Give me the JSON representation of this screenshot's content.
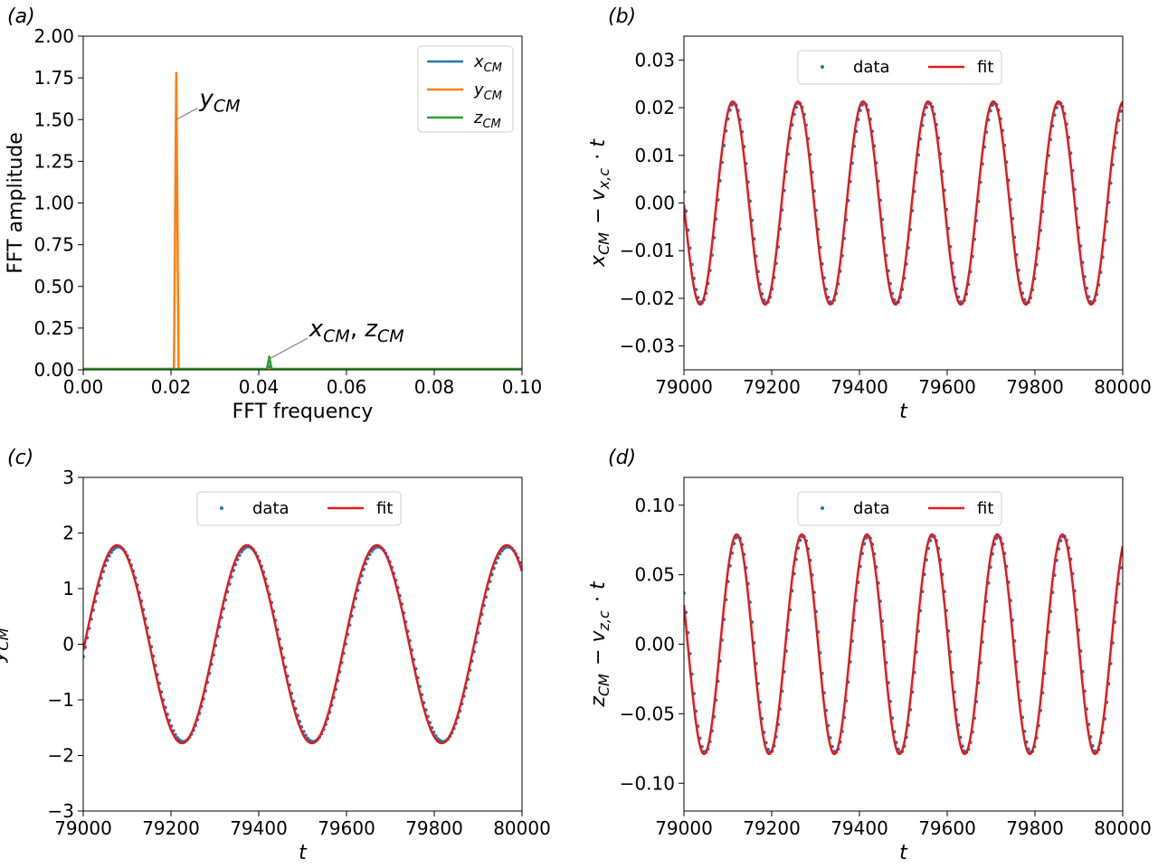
{
  "colors": {
    "x_cm": "#1f77b4",
    "y_cm": "#ff7f0e",
    "z_cm": "#2ca02c",
    "data": "#1f77b4",
    "fit": "#e41a1c"
  },
  "chart_data": [
    {
      "id": "a",
      "panel_label": "(a)",
      "type": "line",
      "xlabel": "FFT frequency",
      "ylabel": "FFT amplitude",
      "xlim": [
        0.0,
        0.1
      ],
      "ylim": [
        0.0,
        2.0
      ],
      "xticks": [
        0.0,
        0.02,
        0.04,
        0.06,
        0.08,
        0.1
      ],
      "xtick_labels": [
        "0.00",
        "0.02",
        "0.04",
        "0.06",
        "0.08",
        "0.10"
      ],
      "yticks": [
        0.0,
        0.25,
        0.5,
        0.75,
        1.0,
        1.25,
        1.5,
        1.75,
        2.0
      ],
      "ytick_labels": [
        "0.00",
        "0.25",
        "0.50",
        "0.75",
        "1.00",
        "1.25",
        "1.50",
        "1.75",
        "2.00"
      ],
      "legend_position": "top-right",
      "series": [
        {
          "name": "x_CM",
          "peak_frequency": 0.0424,
          "peak_amplitude": 0.021,
          "baseline": 0.005
        },
        {
          "name": "y_CM",
          "peak_frequency": 0.0212,
          "peak_amplitude": 1.78,
          "baseline": 0.005
        },
        {
          "name": "z_CM",
          "peak_frequency": 0.0424,
          "peak_amplitude": 0.079,
          "baseline": 0.005
        }
      ],
      "annotations": [
        {
          "base": "y",
          "sub": "CM",
          "suffix": "",
          "arrow_to": [
            0.0212,
            1.5
          ],
          "text_at": [
            0.0265,
            1.58
          ]
        },
        {
          "base": "x",
          "sub": "CM",
          "suffix": ", z",
          "suffix_sub": "CM",
          "arrow_to": [
            0.0424,
            0.065
          ],
          "text_at": [
            0.0515,
            0.2
          ]
        }
      ]
    },
    {
      "id": "b",
      "panel_label": "(b)",
      "type": "line",
      "xlabel": "t",
      "ylabel": "x_CM − v_x,c · t",
      "xlim": [
        79000,
        80000
      ],
      "ylim": [
        -0.035,
        0.035
      ],
      "xticks": [
        79000,
        79200,
        79400,
        79600,
        79800,
        80000
      ],
      "xtick_labels": [
        "79000",
        "79200",
        "79400",
        "79600",
        "79800",
        "80000"
      ],
      "yticks": [
        -0.03,
        -0.02,
        -0.01,
        0.0,
        0.01,
        0.02,
        0.03
      ],
      "ytick_labels": [
        "−0.03",
        "−0.02",
        "−0.01",
        "0.00",
        "0.01",
        "0.02",
        "0.03"
      ],
      "legend_position": "top-center",
      "legend": [
        "data",
        "fit"
      ],
      "fit": {
        "amplitude": 0.0213,
        "period": 148.5,
        "peak_t": 79111,
        "offset": 0
      },
      "data_samples": {
        "count": 220,
        "t_start": 79000,
        "t_end": 80000
      }
    },
    {
      "id": "c",
      "panel_label": "(c)",
      "type": "line",
      "xlabel": "t",
      "ylabel": "y_CM",
      "xlim": [
        79000,
        80000
      ],
      "ylim": [
        -3,
        3
      ],
      "xticks": [
        79000,
        79200,
        79400,
        79600,
        79800,
        80000
      ],
      "xtick_labels": [
        "79000",
        "79200",
        "79400",
        "79600",
        "79800",
        "80000"
      ],
      "yticks": [
        -3,
        -2,
        -1,
        0,
        1,
        2,
        3
      ],
      "ytick_labels": [
        "−3",
        "−2",
        "−1",
        "0",
        "1",
        "2",
        "3"
      ],
      "legend_position": "top-center",
      "legend": [
        "data",
        "fit"
      ],
      "fit": {
        "amplitude": 1.78,
        "period": 296,
        "peak_t": 79077,
        "offset": 0
      },
      "data_samples": {
        "count": 220,
        "t_start": 79000,
        "t_end": 80000
      }
    },
    {
      "id": "d",
      "panel_label": "(d)",
      "type": "line",
      "xlabel": "t",
      "ylabel": "z_CM − v_z,c · t",
      "xlim": [
        79000,
        80000
      ],
      "ylim": [
        -0.12,
        0.12
      ],
      "xticks": [
        79000,
        79200,
        79400,
        79600,
        79800,
        80000
      ],
      "xtick_labels": [
        "79000",
        "79200",
        "79400",
        "79600",
        "79800",
        "80000"
      ],
      "yticks": [
        -0.1,
        -0.05,
        0.0,
        0.05,
        0.1
      ],
      "ytick_labels": [
        "−0.10",
        "−0.05",
        "0.00",
        "0.05",
        "0.10"
      ],
      "legend_position": "top-center",
      "legend": [
        "data",
        "fit"
      ],
      "fit": {
        "amplitude": 0.079,
        "period": 148.5,
        "peak_t": 79120,
        "offset": 0
      },
      "data_samples": {
        "count": 220,
        "t_start": 79000,
        "t_end": 80000
      }
    }
  ]
}
